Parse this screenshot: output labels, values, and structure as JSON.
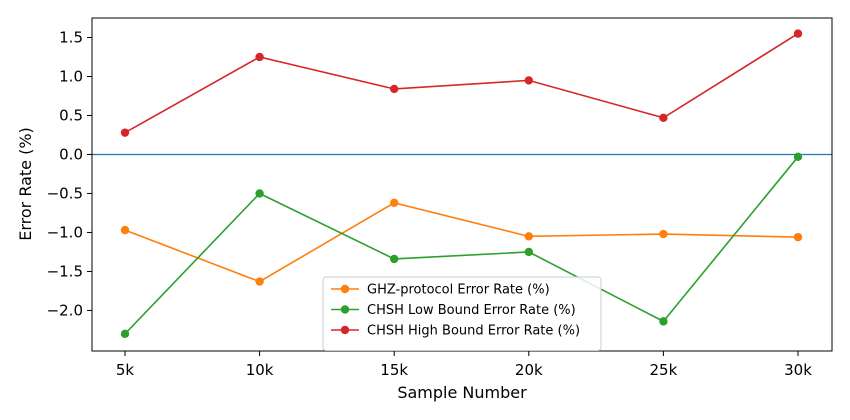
{
  "chart_data": {
    "type": "line",
    "title": "",
    "xlabel": "Sample Number",
    "ylabel": "Error Rate (%)",
    "categories": [
      "5k",
      "10k",
      "15k",
      "20k",
      "25k",
      "30k"
    ],
    "ylim": [
      -2.52,
      1.75
    ],
    "yticks": [
      1.5,
      1.0,
      0.5,
      0.0,
      -0.5,
      -1.0,
      -1.5,
      -2.0
    ],
    "ytick_labels": [
      "1.5",
      "1.0",
      "0.5",
      "0.0",
      "−0.5",
      "−1.0",
      "−1.5",
      "−2.0"
    ],
    "reference_line": {
      "y": 0.0,
      "color": "#1f77b4"
    },
    "series": [
      {
        "name": "GHZ-protocol Error Rate (%)",
        "color": "#ff7f0e",
        "values": [
          -0.97,
          -1.63,
          -0.62,
          -1.05,
          -1.02,
          -1.06
        ]
      },
      {
        "name": "CHSH Low Bound Error Rate (%)",
        "color": "#2ca02c",
        "values": [
          -2.3,
          -0.5,
          -1.34,
          -1.25,
          -2.14,
          -0.03
        ]
      },
      {
        "name": "CHSH High Bound Error Rate (%)",
        "color": "#d62728",
        "values": [
          0.28,
          1.25,
          0.84,
          0.95,
          0.47,
          1.55
        ]
      }
    ],
    "grid": false,
    "legend_position": "lower-center"
  }
}
